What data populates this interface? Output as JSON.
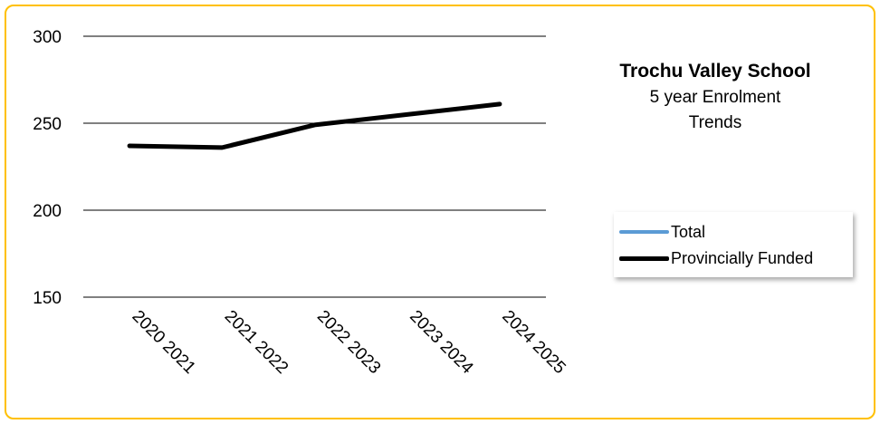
{
  "chart_data": {
    "type": "line",
    "title": "Trochu Valley School",
    "subtitle_lines": [
      "5 year Enrolment",
      "Trends"
    ],
    "categories": [
      "2020 2021",
      "2021 2022",
      "2022 2023",
      "2023 2024",
      "2024 2025"
    ],
    "ylim": [
      150,
      300
    ],
    "yticks": [
      150,
      200,
      250,
      300
    ],
    "grid": true,
    "legend_position": "right",
    "series": [
      {
        "name": "Total",
        "color": "#5b9bd5",
        "values": [
          237,
          236,
          249,
          255,
          261
        ]
      },
      {
        "name": "Provincially Funded",
        "color": "#000000",
        "values": [
          237,
          236,
          249,
          255,
          261
        ]
      }
    ],
    "border_color": "#ffc000"
  }
}
